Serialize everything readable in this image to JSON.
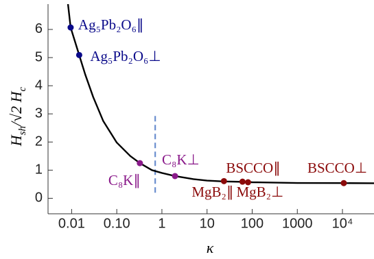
{
  "chart_data": {
    "type": "line",
    "xlabel": "κ",
    "ylabel": [
      "H",
      "sh",
      "/√2 ",
      "H",
      "c"
    ],
    "log_x": true,
    "xlim": [
      0.003,
      50000
    ],
    "ylim": [
      -0.55,
      6.9
    ],
    "xticks": [
      0.01,
      {
        "value": 0.1,
        "label": "0.10"
      },
      1,
      10,
      100,
      1000,
      {
        "value": 10000,
        "label": "10⁴"
      }
    ],
    "yticks": [
      0,
      1,
      2,
      3,
      4,
      5,
      6
    ],
    "series": [
      {
        "color": "#000000",
        "x": [
          0.0083,
          0.0095,
          0.0147,
          0.02,
          0.03,
          0.05,
          0.1,
          0.2,
          0.325,
          0.6,
          1,
          1.95,
          5,
          10,
          23.7,
          61,
          100,
          1000,
          10700,
          50000
        ],
        "values": [
          6.9,
          6.07,
          5.09,
          4.4,
          3.6,
          2.75,
          1.98,
          1.5,
          1.25,
          1.0,
          0.9,
          0.79,
          0.68,
          0.63,
          0.6,
          0.585,
          0.57,
          0.545,
          0.54,
          0.535
        ]
      }
    ],
    "points": [
      {
        "label": "Ag₅Pb₂O₆∥",
        "x": 0.0095,
        "y": 6.07,
        "color": "#0a0a8a"
      },
      {
        "label": "Ag₅Pb₂O₆⊥",
        "x": 0.0147,
        "y": 5.09,
        "color": "#0a0a8a"
      },
      {
        "label": "C₈K∥",
        "x": 0.325,
        "y": 1.25,
        "color": "#8a1a8a"
      },
      {
        "label": "C₈K⊥",
        "x": 1.95,
        "y": 0.79,
        "color": "#8a1a8a"
      },
      {
        "label": "MgB₂∥",
        "x": 23.7,
        "y": 0.61,
        "color": "#8b0a0a"
      },
      {
        "label": "BSCCO∥",
        "x": 61,
        "y": 0.59,
        "color": "#8b0a0a"
      },
      {
        "label": "MgB₂⊥",
        "x": 81,
        "y": 0.57,
        "color": "#8b0a0a"
      },
      {
        "label": "BSCCO⊥",
        "x": 10700,
        "y": 0.54,
        "color": "#8b0a0a"
      }
    ],
    "reference_line": {
      "x": 0.71,
      "y": [
        0.2,
        3.0
      ],
      "color": "#6b8fcf",
      "dashed": true
    }
  }
}
